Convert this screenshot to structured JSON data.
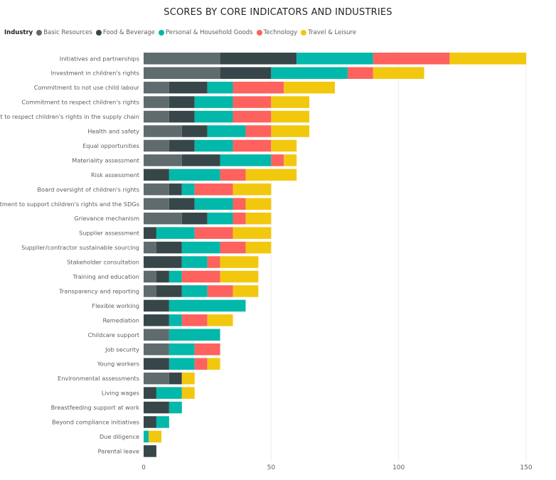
{
  "chart_data": {
    "type": "bar",
    "orientation": "horizontal",
    "stacked": true,
    "title": "SCORES BY CORE INDICATORS AND INDUSTRIES",
    "legend_title": "Industry",
    "legend_position": "top-left",
    "categories": [
      "Initiatives and partnerships",
      "Investment in children's rights",
      "Commitment to not use child labour",
      "Commitment to respect children's rights",
      "Commitment to respect children's rights in the supply chain",
      "Health and safety",
      "Equal opportunities",
      "Materiality assessment",
      "Risk assessment",
      "Board oversight of children's rights",
      "Commitment to support children's rights and the SDGs",
      "Grievance mechanism",
      "Supplier assessment",
      "Supplier/contractor sustainable sourcing",
      "Stakeholder consultation",
      "Training and education",
      "Transparency and reporting",
      "Flexible working",
      "Remediation",
      "Childcare support",
      "Job security",
      "Young workers",
      "Environmental assessments",
      "Living wages",
      "Breastfeeding support at work",
      "Beyond compliance initiatives",
      "Due diligence",
      "Parental leave"
    ],
    "series": [
      {
        "name": "Basic Resources",
        "color": "#5f6b6d",
        "values": [
          30,
          30,
          10,
          10,
          10,
          15,
          10,
          15,
          0,
          10,
          10,
          15,
          0,
          5,
          0,
          5,
          5,
          0,
          0,
          10,
          10,
          0,
          10,
          0,
          0,
          0,
          0,
          0
        ]
      },
      {
        "name": "Food & Beverage",
        "color": "#374649",
        "values": [
          30,
          20,
          15,
          10,
          10,
          10,
          10,
          15,
          10,
          5,
          10,
          10,
          5,
          10,
          15,
          5,
          10,
          10,
          10,
          0,
          0,
          10,
          5,
          5,
          10,
          5,
          0,
          5
        ]
      },
      {
        "name": "Personal & Household Goods",
        "color": "#01b8aa",
        "values": [
          30,
          30,
          10,
          15,
          15,
          15,
          15,
          20,
          20,
          5,
          15,
          10,
          15,
          15,
          10,
          5,
          10,
          30,
          5,
          20,
          10,
          10,
          0,
          10,
          5,
          5,
          2,
          0
        ]
      },
      {
        "name": "Technology",
        "color": "#fd625e",
        "values": [
          30,
          10,
          20,
          15,
          15,
          10,
          15,
          5,
          10,
          15,
          5,
          5,
          15,
          10,
          5,
          15,
          10,
          0,
          10,
          0,
          10,
          5,
          0,
          0,
          0,
          0,
          0,
          0
        ]
      },
      {
        "name": "Travel & Leisure",
        "color": "#f2c80f",
        "values": [
          30,
          20,
          20,
          15,
          15,
          15,
          10,
          5,
          20,
          15,
          10,
          10,
          15,
          10,
          15,
          15,
          10,
          0,
          10,
          0,
          0,
          5,
          5,
          5,
          0,
          0,
          5,
          0
        ]
      }
    ],
    "xlim": [
      0,
      150
    ],
    "xticks": [
      "0",
      "50",
      "100",
      "150"
    ],
    "tick_values": [
      0,
      50,
      100,
      150
    ],
    "grid": true
  }
}
